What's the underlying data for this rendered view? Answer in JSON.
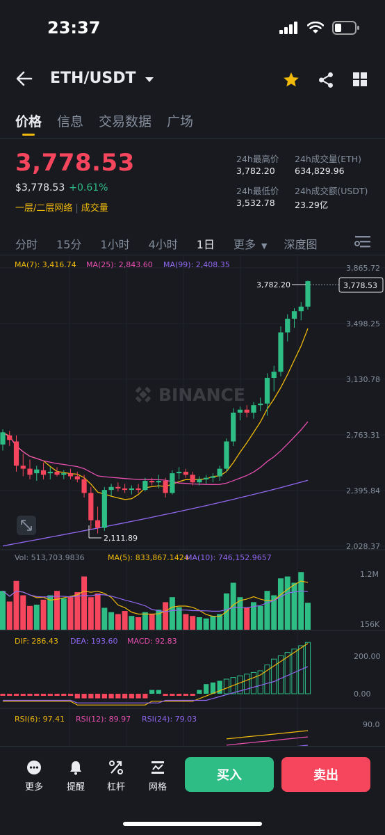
{
  "status_bar": {
    "time": "23:37"
  },
  "header": {
    "pair": "ETH/USDT"
  },
  "tabs": [
    {
      "label": "价格"
    },
    {
      "label": "信息"
    },
    {
      "label": "交易数据"
    },
    {
      "label": "广场"
    }
  ],
  "ticker": {
    "last_price": "3,778.53",
    "usd_price": "$3,778.53",
    "change_pct": "+0.61%",
    "tag_1": "一层/二层网络",
    "tag_2": "成交量",
    "high_label": "24h最高价",
    "high_value": "3,782.20",
    "vol_eth_label": "24h成交量(ETH)",
    "vol_eth_value": "634,829.96",
    "low_label": "24h最低价",
    "low_value": "3,532.78",
    "vol_usdt_label": "24h成交额(USDT)",
    "vol_usdt_value": "23.29亿"
  },
  "intervals": {
    "items": [
      "分时",
      "15分",
      "1小时",
      "4小时",
      "1日",
      "更多",
      "深度图"
    ],
    "selected": "1日"
  },
  "chart_data": {
    "type": "candlestick",
    "watermark": "BINANCE",
    "price_axis_labels": [
      "3,865.72",
      "3,498.25",
      "3,130.78",
      "2,763.31",
      "2,395.84",
      "2,028.37"
    ],
    "current_price_label": "3,778.53",
    "high_marker": "3,782.20",
    "low_marker": "2,111.89",
    "ma_legend": {
      "ma7": "MA(7): 3,416.74",
      "ma25": "MA(25): 2,843.60",
      "ma99": "MA(99): 2,408.35"
    },
    "volume_legend": {
      "vol": "Vol: 513,703.9836",
      "ma5": "MA(5): 833,867.1424",
      "ma10": "MA(10): 746,152.9657"
    },
    "volume_axis_labels": [
      "1.2M",
      "156K"
    ],
    "macd_legend": {
      "dif": "DIF: 286.43",
      "dea": "DEA: 193.60",
      "macd": "MACD: 92.83"
    },
    "macd_axis_labels": [
      "200.00",
      "0.00"
    ],
    "rsi_legend": {
      "rsi6": "RSI(6): 97.41",
      "rsi12": "RSI(12): 89.97",
      "rsi24": "RSI(24): 79.03"
    },
    "rsi_axis_labels": [
      "90.0"
    ],
    "candles": [
      {
        "o": 2700,
        "h": 2800,
        "l": 2660,
        "c": 2780
      },
      {
        "o": 2760,
        "h": 2790,
        "l": 2690,
        "c": 2730
      },
      {
        "o": 2720,
        "h": 2760,
        "l": 2520,
        "c": 2560
      },
      {
        "o": 2560,
        "h": 2640,
        "l": 2490,
        "c": 2540
      },
      {
        "o": 2540,
        "h": 2600,
        "l": 2470,
        "c": 2500
      },
      {
        "o": 2510,
        "h": 2560,
        "l": 2460,
        "c": 2535
      },
      {
        "o": 2530,
        "h": 2580,
        "l": 2470,
        "c": 2500
      },
      {
        "o": 2510,
        "h": 2550,
        "l": 2470,
        "c": 2520
      },
      {
        "o": 2520,
        "h": 2550,
        "l": 2490,
        "c": 2500
      },
      {
        "o": 2500,
        "h": 2530,
        "l": 2470,
        "c": 2510
      },
      {
        "o": 2510,
        "h": 2540,
        "l": 2470,
        "c": 2490
      },
      {
        "o": 2490,
        "h": 2520,
        "l": 2450,
        "c": 2470
      },
      {
        "o": 2470,
        "h": 2500,
        "l": 2350,
        "c": 2380
      },
      {
        "o": 2380,
        "h": 2420,
        "l": 2140,
        "c": 2200
      },
      {
        "o": 2200,
        "h": 2290,
        "l": 2112,
        "c": 2150
      },
      {
        "o": 2150,
        "h": 2420,
        "l": 2130,
        "c": 2400
      },
      {
        "o": 2400,
        "h": 2440,
        "l": 2360,
        "c": 2420
      },
      {
        "o": 2420,
        "h": 2450,
        "l": 2390,
        "c": 2410
      },
      {
        "o": 2410,
        "h": 2440,
        "l": 2380,
        "c": 2400
      },
      {
        "o": 2400,
        "h": 2430,
        "l": 2370,
        "c": 2410
      },
      {
        "o": 2410,
        "h": 2440,
        "l": 2380,
        "c": 2400
      },
      {
        "o": 2400,
        "h": 2480,
        "l": 2390,
        "c": 2460
      },
      {
        "o": 2460,
        "h": 2480,
        "l": 2430,
        "c": 2450
      },
      {
        "o": 2450,
        "h": 2500,
        "l": 2410,
        "c": 2460
      },
      {
        "o": 2460,
        "h": 2480,
        "l": 2350,
        "c": 2380
      },
      {
        "o": 2380,
        "h": 2530,
        "l": 2370,
        "c": 2510
      },
      {
        "o": 2510,
        "h": 2550,
        "l": 2470,
        "c": 2520
      },
      {
        "o": 2520,
        "h": 2540,
        "l": 2480,
        "c": 2500
      },
      {
        "o": 2500,
        "h": 2520,
        "l": 2430,
        "c": 2450
      },
      {
        "o": 2450,
        "h": 2490,
        "l": 2430,
        "c": 2470
      },
      {
        "o": 2470,
        "h": 2500,
        "l": 2440,
        "c": 2480
      },
      {
        "o": 2480,
        "h": 2510,
        "l": 2450,
        "c": 2490
      },
      {
        "o": 2490,
        "h": 2560,
        "l": 2460,
        "c": 2540
      },
      {
        "o": 2540,
        "h": 2740,
        "l": 2520,
        "c": 2720
      },
      {
        "o": 2720,
        "h": 2940,
        "l": 2690,
        "c": 2910
      },
      {
        "o": 2910,
        "h": 2950,
        "l": 2860,
        "c": 2930
      },
      {
        "o": 2930,
        "h": 2960,
        "l": 2880,
        "c": 2910
      },
      {
        "o": 2910,
        "h": 2980,
        "l": 2870,
        "c": 2960
      },
      {
        "o": 2960,
        "h": 3010,
        "l": 2920,
        "c": 2970
      },
      {
        "o": 2970,
        "h": 3170,
        "l": 2890,
        "c": 3140
      },
      {
        "o": 3140,
        "h": 3220,
        "l": 3050,
        "c": 3180
      },
      {
        "o": 3180,
        "h": 3480,
        "l": 3150,
        "c": 3440
      },
      {
        "o": 3440,
        "h": 3560,
        "l": 3380,
        "c": 3530
      },
      {
        "o": 3530,
        "h": 3600,
        "l": 3470,
        "c": 3580
      },
      {
        "o": 3580,
        "h": 3640,
        "l": 3520,
        "c": 3610
      },
      {
        "o": 3610,
        "h": 3782,
        "l": 3590,
        "c": 3778
      }
    ]
  },
  "bottom_bar": {
    "more": "更多",
    "alert": "提醒",
    "leverage": "杠杆",
    "grid": "网格",
    "buy": "买入",
    "sell": "卖出"
  },
  "colors": {
    "up": "#2ebd85",
    "down": "#f6465d",
    "ma7": "#f0b90b",
    "ma25": "#e84fb0",
    "ma99": "#9168f0",
    "accent": "#f0b90b"
  }
}
